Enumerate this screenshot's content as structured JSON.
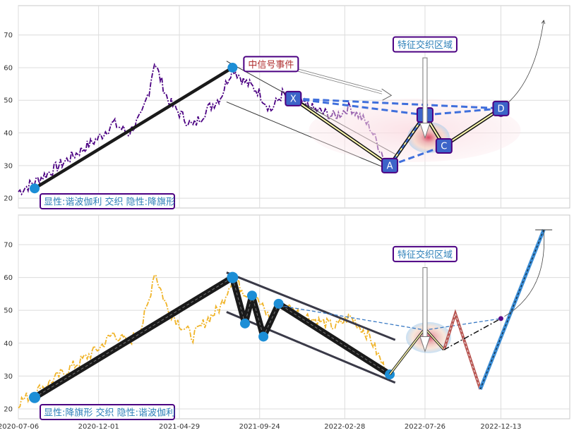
{
  "chart_data": {
    "type": "line",
    "x_tick_labels": [
      "2020-07-06",
      "2020-12-01",
      "2021-04-29",
      "2021-09-24",
      "2022-02-28",
      "2022-07-26",
      "2022-12-13"
    ],
    "x_ticks": [
      "2020-07-06",
      "2020-12-01",
      "2021-04-29",
      "2021-09-24",
      "2022-02-28",
      "2022-07-26",
      "2022-12-13"
    ],
    "x_range": [
      "2020-07-06",
      "2023-04-19"
    ],
    "grid": true,
    "colors": {
      "top_price": "#4b0082",
      "bottom_price": "#f0b429",
      "harmonic_fill": "#fffbb0",
      "dash_blue": "#3f6fdc",
      "node_blue": "#1c8ed6",
      "label_purple": "#4b0082",
      "zone_red": "#e05060",
      "zone_blue": "#9cc8ec",
      "bear_leg": "#b85450"
    },
    "panels": [
      {
        "id": "top",
        "y_ticks": [
          20,
          30,
          40,
          50,
          60,
          70
        ],
        "ylim": [
          17,
          79
        ],
        "series_color": "#4b0082",
        "price_anchors": [
          [
            "2020-07-06",
            22
          ],
          [
            "2020-08-05",
            25
          ],
          [
            "2020-09-10",
            29
          ],
          [
            "2020-10-15",
            33
          ],
          [
            "2020-11-10",
            36
          ],
          [
            "2020-12-05",
            39
          ],
          [
            "2020-12-28",
            43
          ],
          [
            "2021-01-25",
            40
          ],
          [
            "2021-02-18",
            45
          ],
          [
            "2021-03-04",
            53
          ],
          [
            "2021-03-14",
            62
          ],
          [
            "2021-03-22",
            58
          ],
          [
            "2021-04-08",
            50
          ],
          [
            "2021-05-05",
            45
          ],
          [
            "2021-05-24",
            42
          ],
          [
            "2021-06-18",
            47
          ],
          [
            "2021-07-14",
            51
          ],
          [
            "2021-08-05",
            60
          ],
          [
            "2021-08-25",
            56
          ],
          [
            "2021-09-20",
            53
          ],
          [
            "2021-10-15",
            47
          ],
          [
            "2021-11-05",
            52
          ],
          [
            "2021-11-25",
            50
          ],
          [
            "2022-01-05",
            47
          ],
          [
            "2022-02-10",
            45
          ],
          [
            "2022-03-10",
            48
          ],
          [
            "2022-04-15",
            42
          ],
          [
            "2022-05-10",
            33
          ],
          [
            "2022-05-22",
            31
          ]
        ],
        "zigzag": [
          [
            "2020-08-05",
            23
          ],
          [
            "2021-08-05",
            60
          ]
        ],
        "channel": {
          "upper": [
            [
              "2021-07-25",
              62
            ],
            [
              "2022-06-01",
              33.5
            ]
          ],
          "lower": [
            [
              "2021-07-25",
              49.5
            ],
            [
              "2022-06-01",
              28
            ]
          ]
        },
        "xabcd": {
          "labels": [
            "X",
            "A",
            "B",
            "C",
            "D"
          ],
          "points": [
            [
              "2021-11-25",
              50.5
            ],
            [
              "2022-05-22",
              30
            ],
            [
              "2022-07-26",
              45.5
            ],
            [
              "2022-08-30",
              36
            ],
            [
              "2022-12-13",
              47.5
            ]
          ]
        },
        "annotations": [
          {
            "text": "中信号事件",
            "date": "2021-10-15",
            "value": 61,
            "color": "#b03030"
          },
          {
            "text": "特征交织区域",
            "date": "2022-07-26",
            "value": 67,
            "color": "#2c7fb8"
          }
        ],
        "curve_end": [
          "2023-03-02",
          74.5
        ],
        "legend_text": "显性:谐波伽利 交织 隐性:降旗形"
      },
      {
        "id": "bottom",
        "y_ticks": [
          20,
          30,
          40,
          50,
          60,
          70
        ],
        "ylim": [
          17,
          79
        ],
        "series_color": "#f0b429",
        "price_anchors": [
          [
            "2020-07-06",
            22
          ],
          [
            "2020-08-05",
            25
          ],
          [
            "2020-09-10",
            29
          ],
          [
            "2020-10-15",
            33
          ],
          [
            "2020-11-10",
            36
          ],
          [
            "2020-12-05",
            39
          ],
          [
            "2020-12-28",
            43
          ],
          [
            "2021-01-25",
            40
          ],
          [
            "2021-02-18",
            45
          ],
          [
            "2021-03-04",
            53
          ],
          [
            "2021-03-14",
            62
          ],
          [
            "2021-03-22",
            58
          ],
          [
            "2021-04-08",
            50
          ],
          [
            "2021-05-05",
            45
          ],
          [
            "2021-05-24",
            42
          ],
          [
            "2021-06-18",
            47
          ],
          [
            "2021-07-14",
            51
          ],
          [
            "2021-08-05",
            60
          ],
          [
            "2021-08-25",
            56
          ],
          [
            "2021-09-20",
            53
          ],
          [
            "2021-10-15",
            47
          ],
          [
            "2021-11-05",
            52
          ],
          [
            "2021-11-25",
            50
          ],
          [
            "2022-01-05",
            47
          ],
          [
            "2022-02-10",
            45
          ],
          [
            "2022-03-10",
            48
          ],
          [
            "2022-04-15",
            42
          ],
          [
            "2022-05-10",
            33
          ],
          [
            "2022-05-22",
            31
          ]
        ],
        "zigzag": [
          [
            "2020-08-05",
            23.5
          ],
          [
            "2021-08-05",
            60
          ],
          [
            "2021-08-28",
            46
          ],
          [
            "2021-09-10",
            54.5
          ],
          [
            "2021-10-01",
            42
          ],
          [
            "2021-10-29",
            52
          ],
          [
            "2022-05-22",
            30.5
          ]
        ],
        "channel": {
          "upper": [
            [
              "2021-07-25",
              61.5
            ],
            [
              "2022-06-01",
              41
            ]
          ],
          "lower": [
            [
              "2021-07-25",
              49.5
            ],
            [
              "2022-06-01",
              28
            ]
          ]
        },
        "after_path": [
          [
            "2022-05-22",
            30.5
          ],
          [
            "2022-07-26",
            44.5
          ],
          [
            "2022-08-30",
            38
          ]
        ],
        "bear_leg": [
          [
            "2022-08-30",
            38
          ],
          [
            "2022-09-20",
            49
          ],
          [
            "2022-11-05",
            26
          ]
        ],
        "blue_leg": [
          [
            "2022-11-05",
            26
          ],
          [
            "2023-03-02",
            74.5
          ]
        ],
        "dashed_target": [
          [
            "2021-10-29",
            51.5
          ],
          [
            "2022-07-26",
            44
          ],
          [
            "2022-12-13",
            47.5
          ]
        ],
        "dash_dot": [
          [
            "2022-08-30",
            38
          ],
          [
            "2022-12-13",
            47.5
          ]
        ],
        "annotations": [
          {
            "text": "特征交织区域",
            "date": "2022-07-26",
            "value": 67,
            "color": "#2c7fb8"
          }
        ],
        "curve_end": [
          "2023-03-02",
          74.5
        ],
        "legend_text": "显性:降旗形 交织 隐性:谐波伽利"
      }
    ]
  }
}
